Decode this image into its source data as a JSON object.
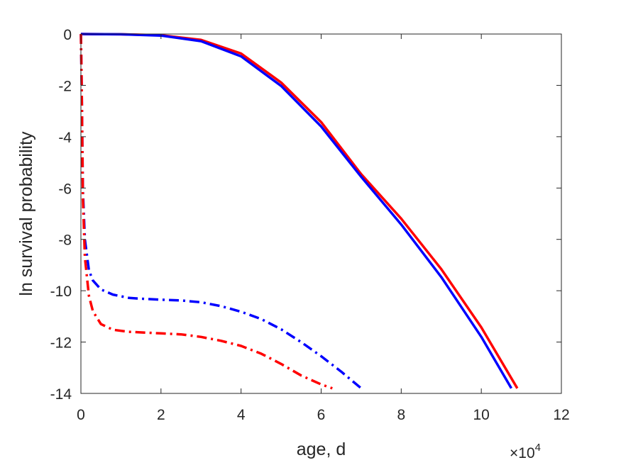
{
  "chart_data": {
    "type": "line",
    "xlabel": "age, d",
    "ylabel": "ln survival probability",
    "x_exponent": {
      "base": "×10",
      "power": "4"
    },
    "xlim": [
      0,
      120000
    ],
    "ylim": [
      -14,
      0
    ],
    "xticks": [
      0,
      20000,
      40000,
      60000,
      80000,
      100000,
      120000
    ],
    "xtick_labels": [
      "0",
      "2",
      "4",
      "6",
      "8",
      "10",
      "12"
    ],
    "yticks": [
      0,
      -2,
      -4,
      -6,
      -8,
      -10,
      -12,
      -14
    ],
    "ytick_labels": [
      "0",
      "-2",
      "-4",
      "-6",
      "-8",
      "-10",
      "-12",
      "-14"
    ],
    "grid": false,
    "box": true,
    "series": [
      {
        "color": "#ff0000",
        "style": "solid",
        "x": [
          0,
          10000,
          20000,
          30000,
          40000,
          50000,
          60000,
          70000,
          80000,
          90000,
          100000,
          109000
        ],
        "y": [
          0,
          -0.01,
          -0.05,
          -0.23,
          -0.76,
          -1.89,
          -3.43,
          -5.46,
          -7.19,
          -9.16,
          -11.43,
          -13.8
        ]
      },
      {
        "color": "#0000ff",
        "style": "solid",
        "x": [
          0,
          10000,
          20000,
          30000,
          40000,
          50000,
          60000,
          70000,
          80000,
          90000,
          100000,
          107500
        ],
        "y": [
          0,
          -0.01,
          -0.06,
          -0.28,
          -0.87,
          -2.02,
          -3.6,
          -5.56,
          -7.42,
          -9.47,
          -11.8,
          -13.8
        ]
      },
      {
        "color": "#0000ff",
        "style": "dashdot",
        "x": [
          0,
          200,
          500,
          1000,
          2000,
          3000,
          5000,
          8000,
          12000,
          16000,
          20000,
          25000,
          30000,
          35000,
          40000,
          45000,
          50000,
          55000,
          60000,
          65000,
          70000
        ],
        "y": [
          0,
          -2.0,
          -6.1,
          -8.0,
          -9.2,
          -9.6,
          -9.95,
          -10.15,
          -10.28,
          -10.32,
          -10.35,
          -10.38,
          -10.45,
          -10.6,
          -10.82,
          -11.1,
          -11.5,
          -12.0,
          -12.55,
          -13.15,
          -13.8
        ]
      },
      {
        "color": "#ff0000",
        "style": "dashdot",
        "x": [
          0,
          200,
          500,
          1000,
          2000,
          3000,
          5000,
          8000,
          12000,
          16000,
          20000,
          25000,
          30000,
          35000,
          40000,
          45000,
          50000,
          55000,
          60000,
          62800
        ],
        "y": [
          0,
          -2.0,
          -6.4,
          -8.7,
          -10.2,
          -10.8,
          -11.3,
          -11.52,
          -11.6,
          -11.63,
          -11.66,
          -11.7,
          -11.8,
          -11.95,
          -12.15,
          -12.45,
          -12.85,
          -13.3,
          -13.65,
          -13.8
        ]
      }
    ]
  }
}
